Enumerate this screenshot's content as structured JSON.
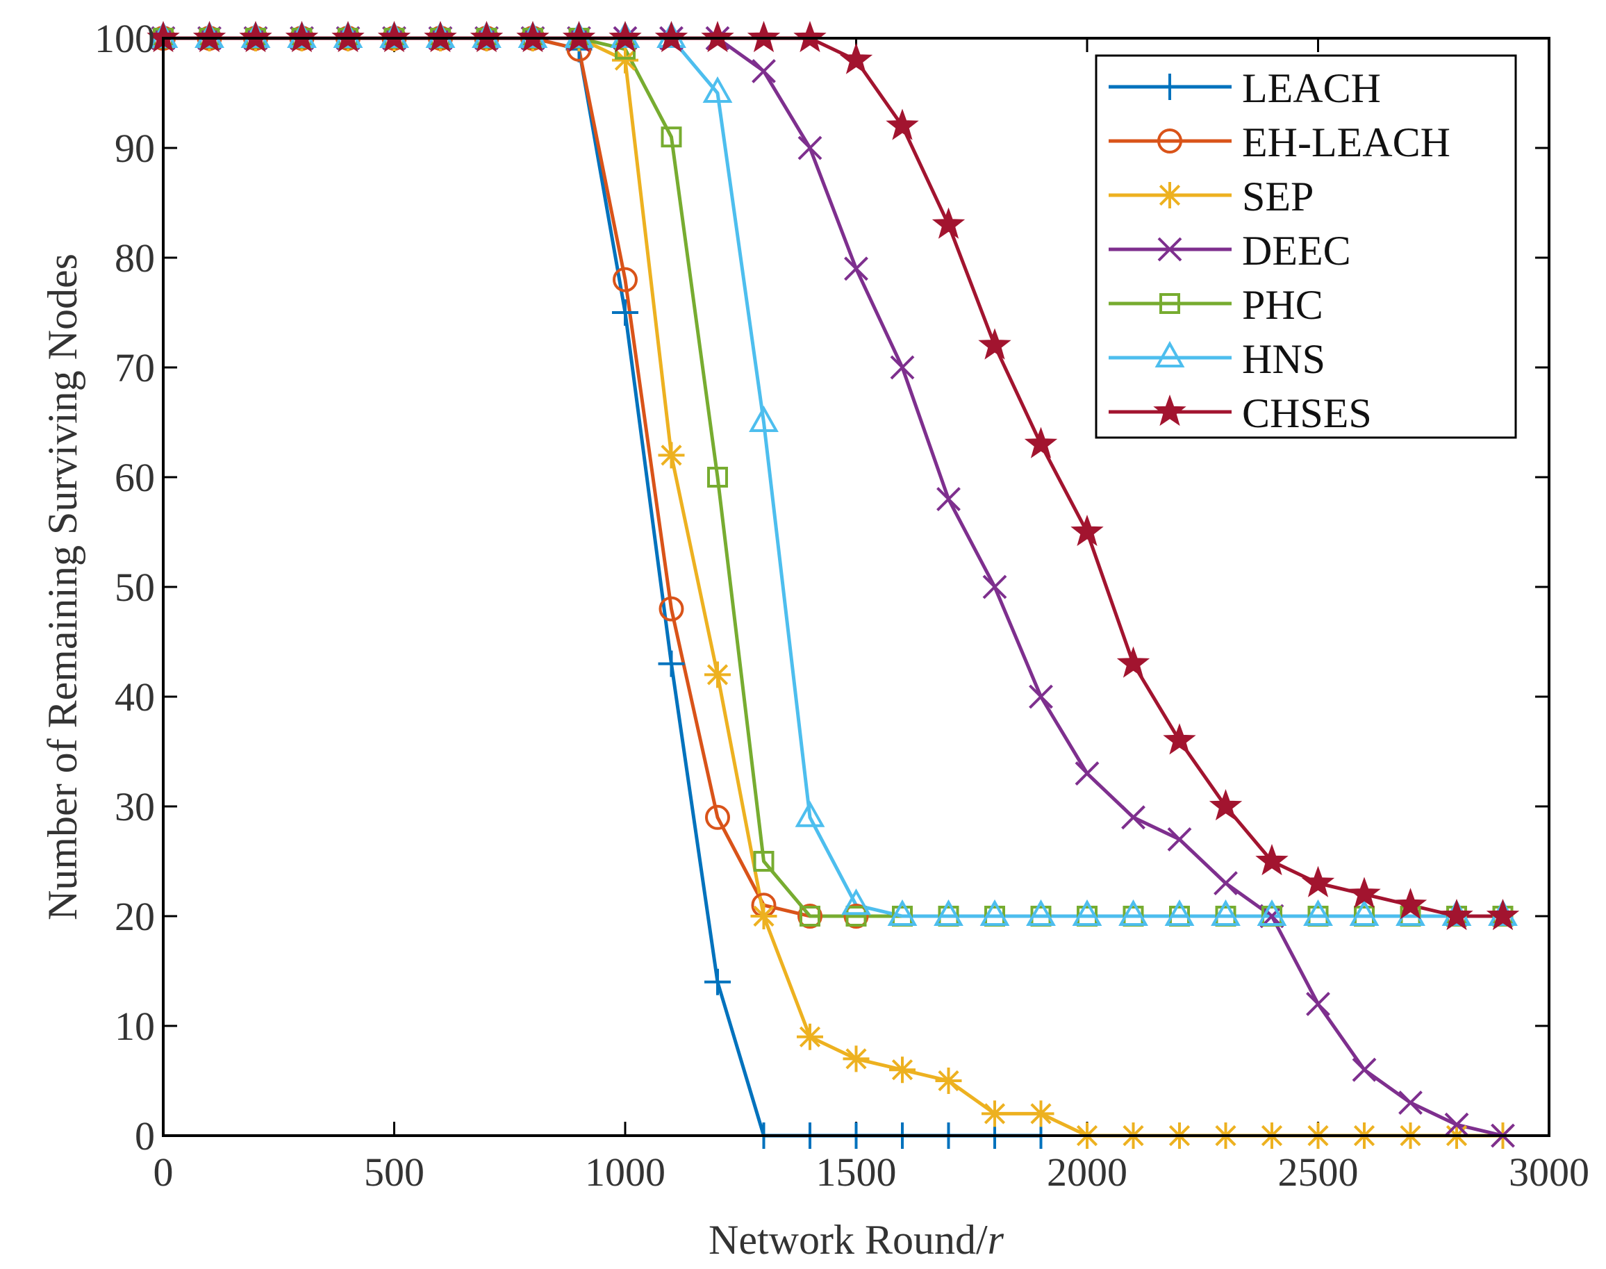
{
  "chart_data": {
    "type": "line",
    "xlabel": "Network Round/",
    "xlabel_italic_suffix": "r",
    "ylabel": "Number of Remaining Surviving Nodes",
    "xlim": [
      0,
      3000
    ],
    "ylim": [
      0,
      100
    ],
    "x_ticks": [
      0,
      500,
      1000,
      1500,
      2000,
      2500,
      3000
    ],
    "y_ticks": [
      0,
      10,
      20,
      30,
      40,
      50,
      60,
      70,
      80,
      90,
      100
    ],
    "grid": false,
    "legend_position": "top-right",
    "x": [
      0,
      100,
      200,
      300,
      400,
      500,
      600,
      700,
      800,
      900,
      1000,
      1100,
      1200,
      1300,
      1400,
      1500,
      1600,
      1700,
      1800,
      1900,
      2000,
      2100,
      2200,
      2300,
      2400,
      2500,
      2600,
      2700,
      2800,
      2900
    ],
    "series": [
      {
        "name": "LEACH",
        "marker": "plus",
        "color": "#0072BD",
        "x": [
          0,
          100,
          200,
          300,
          400,
          500,
          600,
          700,
          800,
          900,
          1000,
          1100,
          1200,
          1300,
          1400,
          1500,
          1600,
          1700,
          1800,
          1900
        ],
        "values": [
          100,
          100,
          100,
          100,
          100,
          100,
          100,
          100,
          100,
          99,
          75,
          43,
          14,
          0,
          0,
          0,
          0,
          0,
          0,
          0
        ]
      },
      {
        "name": "EH-LEACH",
        "marker": "circle",
        "color": "#D95319",
        "x": [
          0,
          100,
          200,
          300,
          400,
          500,
          600,
          700,
          800,
          900,
          1000,
          1100,
          1200,
          1300,
          1400,
          1500
        ],
        "values": [
          100,
          100,
          100,
          100,
          100,
          100,
          100,
          100,
          100,
          99,
          78,
          48,
          29,
          21,
          20,
          20
        ]
      },
      {
        "name": "SEP",
        "marker": "asterisk",
        "color": "#EDB120",
        "x": [
          0,
          100,
          200,
          300,
          400,
          500,
          600,
          700,
          800,
          900,
          1000,
          1100,
          1200,
          1300,
          1400,
          1500,
          1600,
          1700,
          1800,
          1900,
          2000,
          2100,
          2200,
          2300,
          2400,
          2500,
          2600,
          2700,
          2800,
          2900
        ],
        "values": [
          100,
          100,
          100,
          100,
          100,
          100,
          100,
          100,
          100,
          100,
          98,
          62,
          42,
          20,
          9,
          7,
          6,
          5,
          2,
          2,
          0,
          0,
          0,
          0,
          0,
          0,
          0,
          0,
          0,
          0
        ]
      },
      {
        "name": "DEEC",
        "marker": "cross",
        "color": "#7E2F8E",
        "x": [
          0,
          100,
          200,
          300,
          400,
          500,
          600,
          700,
          800,
          900,
          1000,
          1100,
          1200,
          1300,
          1400,
          1500,
          1600,
          1700,
          1800,
          1900,
          2000,
          2100,
          2200,
          2300,
          2400,
          2500,
          2600,
          2700,
          2800,
          2900
        ],
        "values": [
          100,
          100,
          100,
          100,
          100,
          100,
          100,
          100,
          100,
          100,
          100,
          100,
          100,
          97,
          90,
          79,
          70,
          58,
          50,
          40,
          33,
          29,
          27,
          23,
          20,
          12,
          6,
          3,
          1,
          0
        ]
      },
      {
        "name": "PHC",
        "marker": "square",
        "color": "#77AC30",
        "x": [
          0,
          100,
          200,
          300,
          400,
          500,
          600,
          700,
          800,
          900,
          1000,
          1100,
          1200,
          1300,
          1400,
          1500,
          1600,
          1700,
          1800,
          1900,
          2000,
          2100,
          2200,
          2300,
          2400,
          2500,
          2600,
          2700,
          2800,
          2900
        ],
        "values": [
          100,
          100,
          100,
          100,
          100,
          100,
          100,
          100,
          100,
          100,
          99,
          91,
          60,
          25,
          20,
          20,
          20,
          20,
          20,
          20,
          20,
          20,
          20,
          20,
          20,
          20,
          20,
          20,
          20,
          20
        ]
      },
      {
        "name": "HNS",
        "marker": "triangle",
        "color": "#4DBEEE",
        "x": [
          0,
          100,
          200,
          300,
          400,
          500,
          600,
          700,
          800,
          900,
          1000,
          1100,
          1200,
          1300,
          1400,
          1500,
          1600,
          1700,
          1800,
          1900,
          2000,
          2100,
          2200,
          2300,
          2400,
          2500,
          2600,
          2700,
          2800,
          2900
        ],
        "values": [
          100,
          100,
          100,
          100,
          100,
          100,
          100,
          100,
          100,
          100,
          100,
          100,
          95,
          65,
          29,
          21,
          20,
          20,
          20,
          20,
          20,
          20,
          20,
          20,
          20,
          20,
          20,
          20,
          20,
          20
        ]
      },
      {
        "name": "CHSES",
        "marker": "star",
        "color": "#A2142F",
        "x": [
          0,
          100,
          200,
          300,
          400,
          500,
          600,
          700,
          800,
          900,
          1000,
          1100,
          1200,
          1300,
          1400,
          1500,
          1600,
          1700,
          1800,
          1900,
          2000,
          2100,
          2200,
          2300,
          2400,
          2500,
          2600,
          2700,
          2800,
          2900
        ],
        "values": [
          100,
          100,
          100,
          100,
          100,
          100,
          100,
          100,
          100,
          100,
          100,
          100,
          100,
          100,
          100,
          98,
          92,
          83,
          72,
          63,
          55,
          43,
          36,
          30,
          25,
          23,
          22,
          21,
          20,
          20
        ]
      }
    ]
  }
}
